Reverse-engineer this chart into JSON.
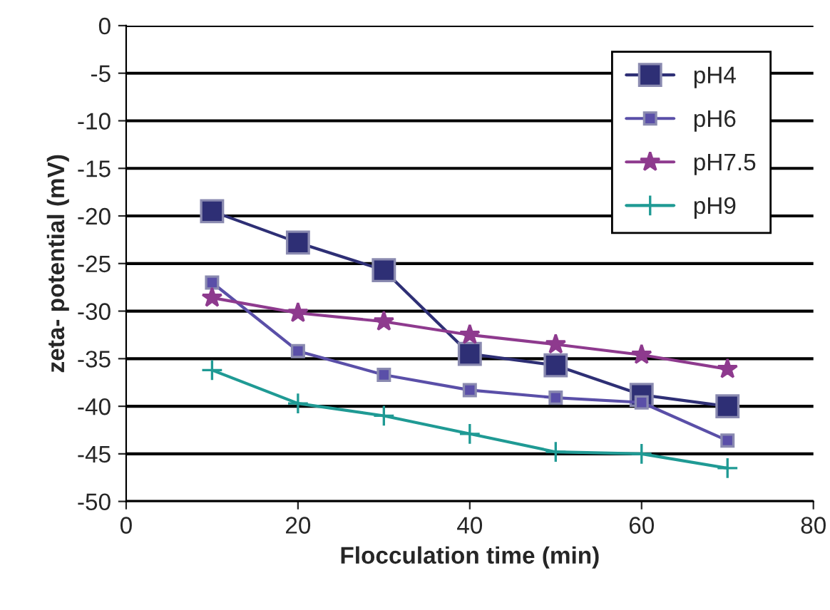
{
  "chart_data": {
    "type": "line",
    "xlabel": "Flocculation time (min)",
    "ylabel": "zeta- potential (mV)",
    "x": [
      10,
      20,
      30,
      40,
      50,
      60,
      70
    ],
    "series": [
      {
        "name": "pH4",
        "color": "#2e2f75",
        "marker": "square",
        "values": [
          -19.5,
          -22.8,
          -25.7,
          -34.5,
          -35.7,
          -38.8,
          -40
        ]
      },
      {
        "name": "pH6",
        "color": "#5a4fa8",
        "marker": "square",
        "values": [
          -27,
          -34.2,
          -36.7,
          -38.3,
          -39.1,
          -39.6,
          -43.6
        ]
      },
      {
        "name": "pH7.5",
        "color": "#8e3a8e",
        "marker": "star",
        "values": [
          -28.6,
          -30.2,
          -31.1,
          -32.5,
          -33.5,
          -34.6,
          -36.1
        ]
      },
      {
        "name": "pH9",
        "color": "#1f9a94",
        "marker": "cross",
        "values": [
          -36.2,
          -39.7,
          -41,
          -42.9,
          -44.8,
          -45,
          -46.5
        ]
      }
    ],
    "xlim": [
      0,
      80
    ],
    "xticks": [
      0,
      20,
      40,
      60,
      80
    ],
    "ylim": [
      -50,
      0
    ],
    "yticks": [
      -50,
      -45,
      -40,
      -35,
      -30,
      -25,
      -20,
      -15,
      -10,
      -5,
      0
    ],
    "grid": "y",
    "legend": "top right",
    "line_style": "solid"
  }
}
